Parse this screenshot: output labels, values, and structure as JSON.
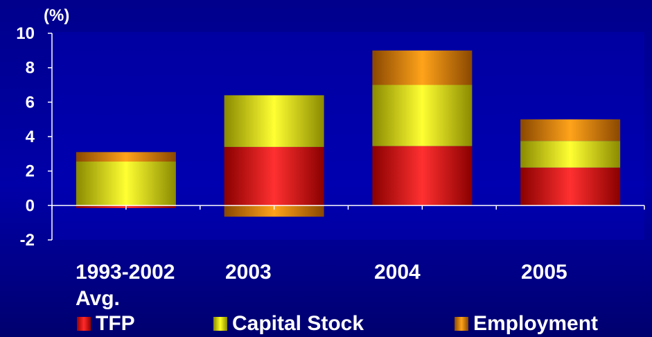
{
  "chart_data": {
    "type": "bar",
    "stacked": true,
    "ylabel": "(%)",
    "ylim": [
      -2,
      10
    ],
    "yticks": [
      "10",
      "8",
      "6",
      "4",
      "2",
      "0",
      "-2"
    ],
    "categories": [
      [
        "1993-2002",
        "Avg."
      ],
      [
        "2003"
      ],
      [
        "2004"
      ],
      [
        "2005"
      ]
    ],
    "series": [
      {
        "name": "TFP",
        "values": [
          -0.15,
          3.4,
          3.45,
          2.2
        ],
        "color": "#ff0000"
      },
      {
        "name": "Capital Stock",
        "values": [
          2.55,
          3.0,
          3.55,
          1.55
        ],
        "color": "#e6e600"
      },
      {
        "name": "Employment",
        "values": [
          0.55,
          -0.65,
          2.0,
          1.25
        ],
        "color": "#ff9900"
      }
    ],
    "grid": false,
    "legend_position": "bottom"
  },
  "colors": {
    "background": "#0000a0",
    "axis": "#ffffff",
    "text": "#ffffff"
  }
}
